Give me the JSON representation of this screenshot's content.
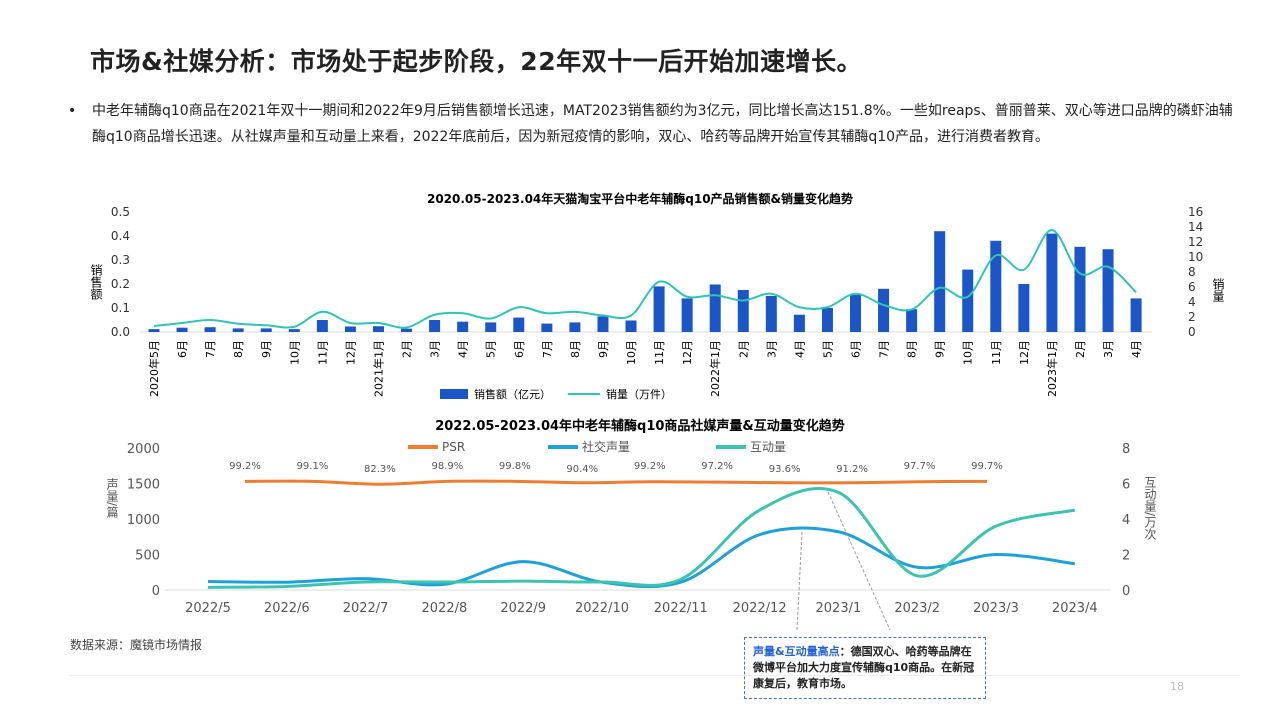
{
  "title": "市场&社媒分析：市场处于起步阶段，22年双十一后开始加速增长。",
  "bullet": "中老年辅酶q10商品在2021年双十一期间和2022年9月后销售额增长迅速，MAT2023销售额约为3亿元，同比增长高达151.8%。一些如reaps、普丽普莱、双心等进口品牌的磷虾油辅酶q10商品增长迅速。从社媒声量和互动量上来看，2022年底前后，因为新冠疫情的影响，双心、哈药等品牌开始宣传其辅酶q10产品，进行消费者教育。",
  "source": "数据来源：魔镜市场情报",
  "note": {
    "highlight": "声量&互动量高点",
    "text": "：德国双心、哈药等品牌在微博平台加大力度宣传辅酶q10商品。在新冠康复后，教育市场。"
  },
  "page_number": "18",
  "chart_data": [
    {
      "type": "bar+line",
      "title": "2020.05-2023.04年天猫淘宝平台中老年辅酶q10产品销售额&销量变化趋势",
      "ylabel": "销售额",
      "y2label": "销量",
      "ylim": [
        0,
        0.5
      ],
      "y2lim": [
        0,
        16
      ],
      "yticks": [
        "0.0",
        "0.1",
        "0.2",
        "0.3",
        "0.4",
        "0.5"
      ],
      "y2ticks": [
        "0",
        "2",
        "4",
        "6",
        "8",
        "10",
        "12",
        "14",
        "16"
      ],
      "categories": [
        "2020年5月",
        "6月",
        "7月",
        "8月",
        "9月",
        "10月",
        "11月",
        "12月",
        "2021年1月",
        "2月",
        "3月",
        "4月",
        "5月",
        "6月",
        "7月",
        "8月",
        "9月",
        "10月",
        "11月",
        "12月",
        "2022年1月",
        "2月",
        "3月",
        "4月",
        "5月",
        "6月",
        "7月",
        "8月",
        "9月",
        "10月",
        "11月",
        "12月",
        "2023年1月",
        "2月",
        "3月",
        "4月"
      ],
      "series": [
        {
          "name": "销售额（亿元）",
          "type": "bar",
          "axis": "left",
          "color": "#1a56c8",
          "values": [
            0.012,
            0.018,
            0.02,
            0.015,
            0.015,
            0.012,
            0.05,
            0.023,
            0.024,
            0.014,
            0.05,
            0.043,
            0.04,
            0.06,
            0.035,
            0.04,
            0.065,
            0.048,
            0.19,
            0.14,
            0.198,
            0.175,
            0.15,
            0.072,
            0.1,
            0.155,
            0.18,
            0.095,
            0.42,
            0.26,
            0.38,
            0.2,
            0.41,
            0.355,
            0.345,
            0.14
          ]
        },
        {
          "name": "销量（万件）",
          "type": "line",
          "axis": "right",
          "color": "#2ec4b6",
          "values": [
            0.8,
            1.2,
            1.6,
            1.1,
            0.9,
            0.7,
            2.7,
            1.2,
            1.2,
            0.6,
            2.3,
            2.5,
            1.8,
            3.3,
            2.5,
            2.7,
            2.2,
            2.2,
            6.7,
            4.7,
            4.9,
            4.2,
            5.1,
            3.3,
            3.3,
            5.1,
            3.6,
            3.0,
            5.9,
            4.7,
            10.2,
            8.3,
            13.6,
            7.8,
            8.7,
            5.3
          ]
        }
      ],
      "legend": "bottom"
    },
    {
      "type": "line",
      "title": "2022.05-2023.04年中老年辅酶q10商品社媒声量&互动量变化趋势",
      "ylabel": "声量/篇",
      "y2label": "互动量/万次",
      "ylim": [
        0,
        2000
      ],
      "y2lim": [
        0,
        8
      ],
      "yticks": [
        "0",
        "500",
        "1000",
        "1500",
        "2000"
      ],
      "y2ticks": [
        "0",
        "2",
        "4",
        "6",
        "8"
      ],
      "categories": [
        "2022/5",
        "2022/6",
        "2022/7",
        "2022/8",
        "2022/9",
        "2022/10",
        "2022/11",
        "2022/12",
        "2023/1",
        "2023/2",
        "2023/3",
        "2023/4"
      ],
      "psr_labels": [
        "99.2%",
        "99.1%",
        "82.3%",
        "98.9%",
        "99.8%",
        "90.4%",
        "99.2%",
        "97.2%",
        "93.6%",
        "91.2%",
        "97.7%",
        "99.7%"
      ],
      "series": [
        {
          "name": "PSR",
          "axis": "left",
          "color": "#ee7d31",
          "values": [
            1530,
            1530,
            1490,
            1530,
            1530,
            1510,
            1525,
            1520,
            1510,
            1510,
            1525,
            1530
          ]
        },
        {
          "name": "社交声量",
          "axis": "left",
          "color": "#1ea0dc",
          "values": [
            120,
            110,
            160,
            80,
            400,
            110,
            110,
            780,
            820,
            320,
            500,
            370
          ]
        },
        {
          "name": "互动量",
          "axis": "right",
          "color": "#3cc4b0",
          "values": [
            0.15,
            0.2,
            0.45,
            0.45,
            0.5,
            0.45,
            0.6,
            4.5,
            5.5,
            0.8,
            3.6,
            4.5
          ]
        }
      ],
      "legend": "top"
    }
  ]
}
